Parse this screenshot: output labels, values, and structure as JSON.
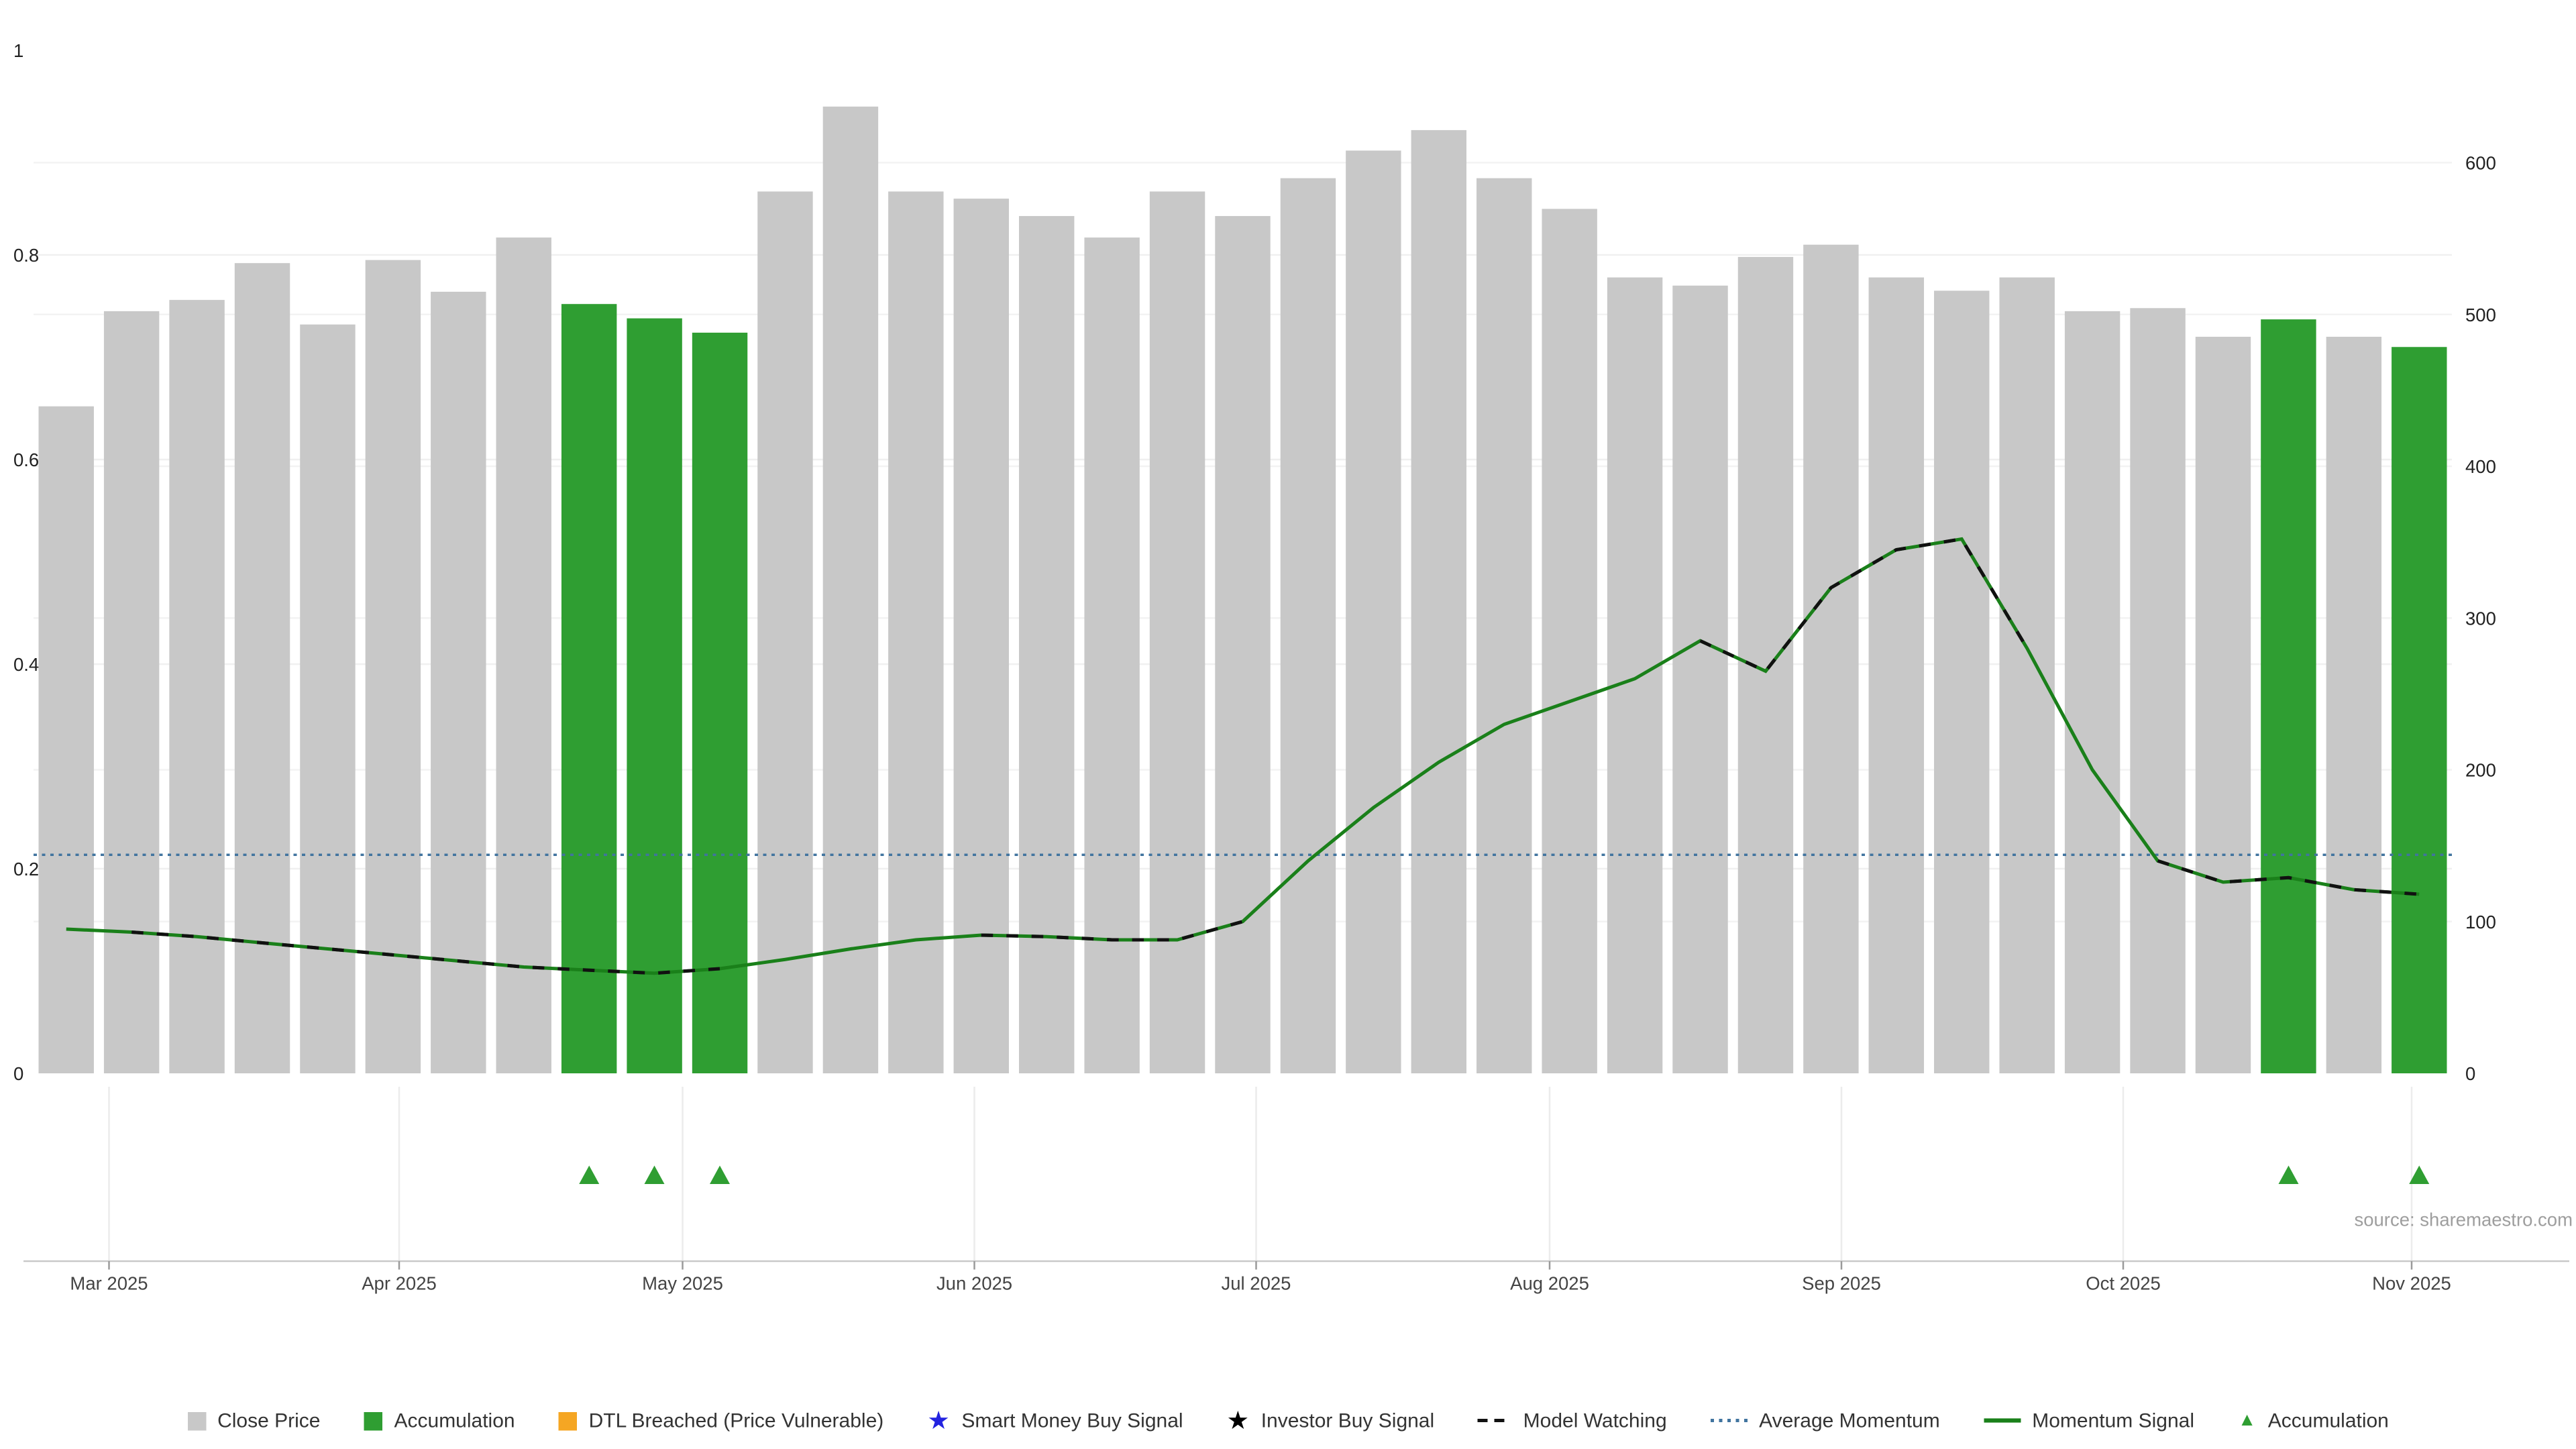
{
  "source_note": "source: sharemaestro.com",
  "legend": {
    "items": [
      {
        "label": "Close Price",
        "icon": "gray-square",
        "color": "#c8c8c8"
      },
      {
        "label": "Accumulation",
        "icon": "green-square",
        "color": "#2f9e32"
      },
      {
        "label": "DTL Breached (Price Vulnerable)",
        "icon": "orange-square",
        "color": "#f5a623"
      },
      {
        "label": "Smart Money Buy Signal",
        "icon": "blue-star",
        "color": "#2323e0"
      },
      {
        "label": "Investor Buy Signal",
        "icon": "black-star",
        "color": "#000000"
      },
      {
        "label": "Model Watching",
        "icon": "black-dashed-line",
        "color": "#111111"
      },
      {
        "label": "Average Momentum",
        "icon": "blue-dotted-line",
        "color": "#41749f"
      },
      {
        "label": "Momentum Signal",
        "icon": "green-line",
        "color": "#1a801a"
      },
      {
        "label": "Accumulation",
        "icon": "green-triangle",
        "color": "#2f9e32"
      }
    ]
  },
  "chart_data": {
    "type": "bar",
    "subtype": "weekly price bars with momentum line overlay",
    "title": "",
    "xlabel": "",
    "ylabel": "",
    "grid": true,
    "legend_position": "bottom",
    "categories": [
      "2025-02-28",
      "2025-03-07",
      "2025-03-14",
      "2025-03-21",
      "2025-03-28",
      "2025-04-04",
      "2025-04-11",
      "2025-04-18",
      "2025-04-25",
      "2025-05-02",
      "2025-05-09",
      "2025-05-16",
      "2025-05-23",
      "2025-05-30",
      "2025-06-06",
      "2025-06-13",
      "2025-06-20",
      "2025-06-27",
      "2025-07-04",
      "2025-07-11",
      "2025-07-18",
      "2025-07-25",
      "2025-08-01",
      "2025-08-08",
      "2025-08-15",
      "2025-08-22",
      "2025-08-29",
      "2025-09-05",
      "2025-09-12",
      "2025-09-19",
      "2025-09-26",
      "2025-10-03",
      "2025-10-10",
      "2025-10-17",
      "2025-10-24",
      "2025-10-31",
      "2025-11-07"
    ],
    "series": [
      {
        "name": "Close Price (normalized, left axis)",
        "type": "bar",
        "axis": "left",
        "color": "#c8c8c8",
        "values": [
          0.652,
          0.745,
          0.756,
          0.792,
          0.732,
          0.795,
          0.764,
          0.817,
          0.752,
          0.738,
          0.724,
          0.862,
          0.945,
          0.862,
          0.855,
          0.838,
          0.817,
          0.862,
          0.838,
          0.875,
          0.902,
          0.922,
          0.875,
          0.845,
          0.778,
          0.77,
          0.798,
          0.81,
          0.778,
          0.765,
          0.778,
          0.745,
          0.748,
          0.72,
          0.737,
          0.72,
          0.71
        ]
      },
      {
        "name": "Momentum Signal",
        "type": "line",
        "axis": "right",
        "color": "#1a801a",
        "values": [
          95,
          93,
          90,
          86,
          82,
          78,
          74,
          70,
          68,
          66,
          69,
          75,
          82,
          88,
          91,
          90,
          88,
          88,
          100,
          140,
          175,
          205,
          230,
          245,
          260,
          285,
          265,
          320,
          345,
          352,
          280,
          200,
          140,
          126,
          129,
          121,
          118
        ]
      }
    ],
    "accumulation_bar_indices": [
      8,
      9,
      10,
      34,
      36
    ],
    "accumulation_marker_indices": [
      8,
      9,
      10,
      34,
      36
    ],
    "model_watching_ranges": [
      [
        1,
        10
      ],
      [
        14,
        18
      ],
      [
        25,
        30
      ],
      [
        32,
        36
      ]
    ],
    "average_momentum": 144,
    "left_axis": {
      "range": [
        0,
        1
      ],
      "ticks": [
        0,
        0.2,
        0.4,
        0.6,
        0.8,
        1
      ],
      "labels": [
        "0",
        "0.2",
        "0.4",
        "0.6",
        "0.8",
        "1"
      ]
    },
    "right_axis": {
      "range": [
        0,
        650
      ],
      "ticks": [
        0,
        100,
        200,
        300,
        400,
        500,
        600
      ],
      "labels": [
        "0",
        "100",
        "200",
        "300",
        "400",
        "500",
        "600"
      ]
    },
    "x_ticks": {
      "labels": [
        "Mar 2025",
        "Apr 2025",
        "May 2025",
        "Jun 2025",
        "Jul 2025",
        "Aug 2025",
        "Sep 2025",
        "Oct 2025",
        "Nov 2025"
      ]
    },
    "colors": {
      "close_bar": "#c8c8c8",
      "accumulation_bar": "#2f9e32",
      "momentum_line": "#1a801a",
      "average_momentum_line": "#41749f",
      "model_watching": "#111111",
      "accumulation_marker": "#2f9e32"
    }
  }
}
